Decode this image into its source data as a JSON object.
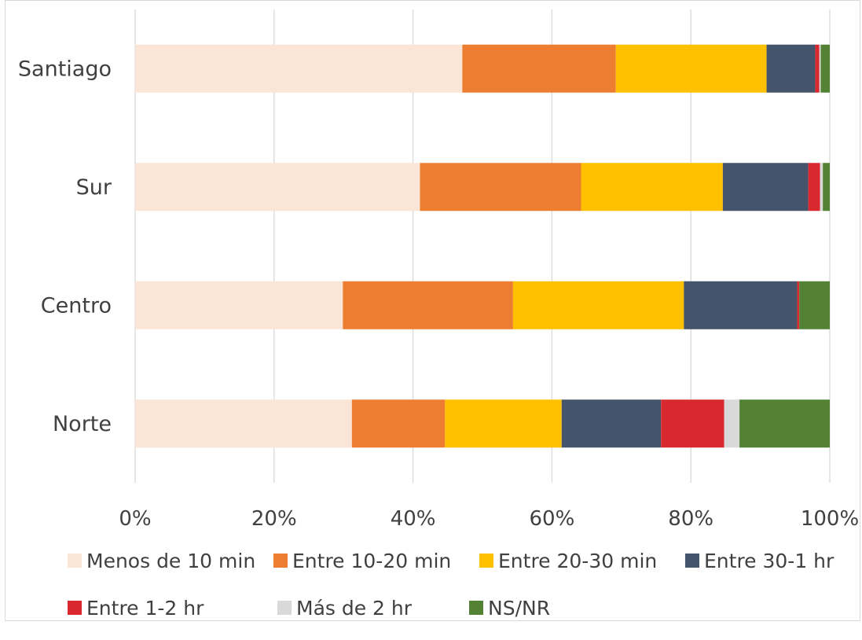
{
  "chart_data": {
    "type": "bar",
    "orientation": "horizontal",
    "stacked": "percent",
    "title": "",
    "xlabel": "",
    "ylabel": "",
    "categories": [
      "Santiago",
      "Sur",
      "Centro",
      "Norte"
    ],
    "xlim": [
      0,
      100
    ],
    "xticks": [
      "0%",
      "20%",
      "40%",
      "60%",
      "80%",
      "100%"
    ],
    "grid": true,
    "legend_position": "bottom",
    "series": [
      {
        "name": "Menos de 10 min",
        "color": "#FBE5D6",
        "values": [
          47.1,
          41.0,
          29.9,
          31.2
        ]
      },
      {
        "name": "Entre 10-20 min",
        "color": "#ED7D31",
        "values": [
          22.1,
          23.2,
          24.5,
          13.4
        ]
      },
      {
        "name": "Entre 20-30 min",
        "color": "#FFC000",
        "values": [
          21.7,
          20.4,
          24.6,
          16.8
        ]
      },
      {
        "name": "Entre 30-1 hr",
        "color": "#44546A",
        "values": [
          7.0,
          12.3,
          16.3,
          14.3
        ]
      },
      {
        "name": "Entre 1-2 hr",
        "color": "#D9282F",
        "values": [
          0.6,
          1.7,
          0.3,
          9.1
        ]
      },
      {
        "name": "Más de 2 hr",
        "color": "#D9D9D9",
        "values": [
          0.2,
          0.4,
          0.0,
          2.2
        ]
      },
      {
        "name": "NS/NR",
        "color": "#548235",
        "values": [
          1.3,
          1.0,
          4.4,
          13.0
        ]
      }
    ]
  }
}
